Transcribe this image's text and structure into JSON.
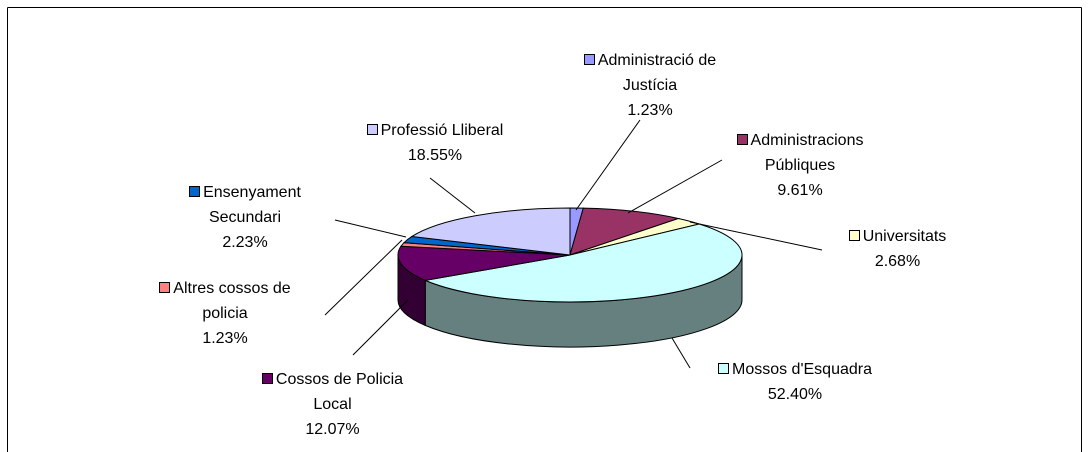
{
  "chart_data": {
    "type": "pie",
    "categories": [
      "Administració de Justícia",
      "Administracions Públiques",
      "Universitats",
      "Mossos d'Esquadra",
      "Cossos de Policia Local",
      "Altres cossos de policia",
      "Ensenyament Secundari",
      "Professió Lliberal"
    ],
    "values": [
      1.23,
      9.61,
      2.68,
      52.4,
      12.07,
      1.23,
      2.23,
      18.55
    ],
    "value_labels": [
      "1.23%",
      "9.61%",
      "2.68%",
      "52.40%",
      "12.07%",
      "1.23%",
      "2.23%",
      "18.55%"
    ],
    "colors": [
      "#9999ff",
      "#993366",
      "#ffffcc",
      "#ccffff",
      "#660066",
      "#ff8080",
      "#0066cc",
      "#ccccff"
    ]
  }
}
